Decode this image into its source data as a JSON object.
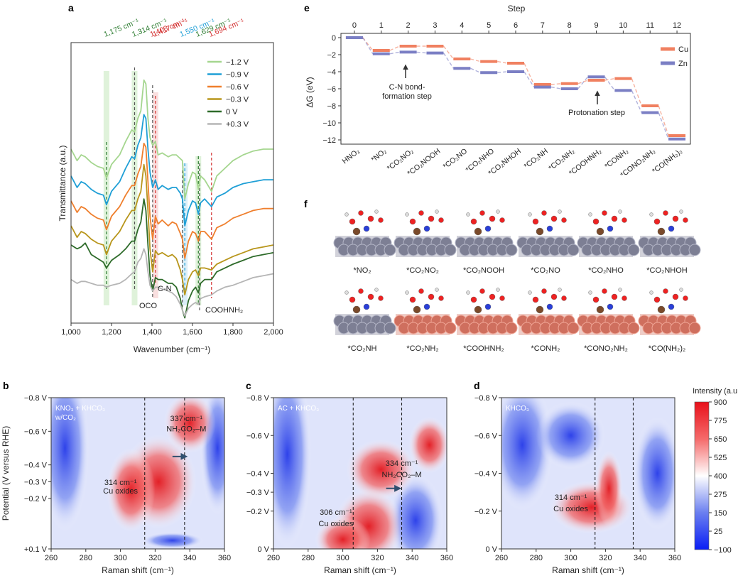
{
  "colors": {
    "green_dark": "#2e7d32",
    "red": "#d32f2f",
    "blue": "#1f9fd6",
    "cu": "#f08060",
    "zn": "#7b7fc4",
    "surface_zn": "#7d7f94",
    "surface_cu": "#d07060"
  },
  "chart_data": [
    {
      "panel": "a",
      "type": "line",
      "xlabel": "Wavenumber (cm⁻¹)",
      "ylabel": "Transmittance (a.u.)",
      "xlim": [
        1000,
        2000
      ],
      "xticks": [
        "1,000",
        "1,200",
        "1,400",
        "1,600",
        "1,800",
        "2,000"
      ],
      "top_labels": [
        {
          "text": "1,175 cm⁻¹",
          "color": "#2e7d32",
          "x": 1175
        },
        {
          "text": "1,314 cm⁻¹",
          "color": "#2e7d32",
          "x": 1314
        },
        {
          "text": "1,403 cm⁻¹",
          "color": "#d32f2f",
          "x": 1403
        },
        {
          "text": "1,417 cm⁻¹",
          "color": "#d32f2f",
          "x": 1417
        },
        {
          "text": "1,550 cm⁻¹",
          "color": "#1f9fd6",
          "x": 1550
        },
        {
          "text": "1,629 cm⁻¹",
          "color": "#2e7d32",
          "x": 1629
        },
        {
          "text": "1,694 cm⁻¹",
          "color": "#d32f2f",
          "x": 1694
        }
      ],
      "dashed_lines": [
        {
          "x": 1175,
          "color": "#2e7d32"
        },
        {
          "x": 1314,
          "color": "#555555"
        },
        {
          "x": 1403,
          "color": "#555555"
        },
        {
          "x": 1417,
          "color": "#d32f2f"
        },
        {
          "x": 1550,
          "color": "#555555"
        },
        {
          "x": 1562,
          "color": "#1f9fd6"
        },
        {
          "x": 1629,
          "color": "#2e7d32"
        },
        {
          "x": 1635,
          "color": "#555555"
        },
        {
          "x": 1694,
          "color": "#d32f2f"
        }
      ],
      "annotations": [
        {
          "text": "OCO",
          "x": 1340
        },
        {
          "text": "C-N",
          "x": 1420
        },
        {
          "text": "COOHNH₂",
          "x": 1720
        }
      ],
      "series": [
        {
          "name": "−1.2 V",
          "color": "#a5d68f",
          "offset": 5.0,
          "x": [
            1000,
            1030,
            1050,
            1070,
            1100,
            1130,
            1160,
            1175,
            1200,
            1240,
            1270,
            1300,
            1314,
            1330,
            1345,
            1360,
            1370,
            1380,
            1390,
            1403,
            1417,
            1430,
            1450,
            1480,
            1500,
            1520,
            1540,
            1550,
            1562,
            1580,
            1600,
            1615,
            1629,
            1640,
            1660,
            1694,
            1720,
            1760,
            1800,
            1850,
            1900,
            1950,
            2000
          ],
          "y": [
            0,
            -0.6,
            -0.3,
            -0.4,
            -0.7,
            -0.9,
            -1.0,
            -1.5,
            -0.8,
            -0.3,
            0.4,
            1.0,
            0.9,
            1.6,
            2.0,
            3.6,
            3.4,
            1.6,
            0.6,
            0.2,
            0.4,
            -0.3,
            -0.2,
            -0.4,
            -0.3,
            -0.3,
            -0.5,
            -0.6,
            -2.6,
            -1.8,
            -1.2,
            -1.3,
            -2.1,
            -1.4,
            -1.6,
            -2.2,
            -1.4,
            -1.0,
            -0.6,
            -0.3,
            -0.1,
            0.0,
            0.0
          ]
        },
        {
          "name": "−0.9 V",
          "color": "#1f9fd6",
          "offset": 3.6,
          "x": [
            1000,
            1030,
            1050,
            1070,
            1100,
            1130,
            1160,
            1175,
            1200,
            1240,
            1270,
            1300,
            1314,
            1330,
            1345,
            1360,
            1370,
            1380,
            1390,
            1403,
            1417,
            1430,
            1450,
            1480,
            1500,
            1520,
            1540,
            1550,
            1562,
            1580,
            1600,
            1615,
            1629,
            1640,
            1660,
            1694,
            1720,
            1760,
            1800,
            1850,
            1900,
            1950,
            2000
          ],
          "y": [
            0,
            -0.6,
            -0.3,
            -0.4,
            -0.7,
            -0.9,
            -1.0,
            -1.5,
            -0.8,
            -0.3,
            0.4,
            1.0,
            0.9,
            1.6,
            2.0,
            3.2,
            3.0,
            1.4,
            0.2,
            -0.6,
            -0.2,
            -0.7,
            -0.5,
            -0.7,
            -0.6,
            -0.6,
            -0.9,
            -1.2,
            -2.6,
            -1.8,
            -1.3,
            -1.4,
            -2.0,
            -1.4,
            -1.2,
            -1.6,
            -1.1,
            -0.9,
            -0.6,
            -0.4,
            -0.3,
            -0.2,
            -0.2
          ]
        },
        {
          "name": "−0.6 V",
          "color": "#ef7f2d",
          "offset": 2.3,
          "x": [
            1000,
            1030,
            1050,
            1070,
            1100,
            1130,
            1160,
            1175,
            1200,
            1240,
            1270,
            1300,
            1314,
            1330,
            1345,
            1360,
            1370,
            1380,
            1390,
            1403,
            1417,
            1430,
            1450,
            1480,
            1500,
            1520,
            1540,
            1550,
            1562,
            1580,
            1600,
            1615,
            1629,
            1640,
            1660,
            1694,
            1720,
            1760,
            1800,
            1850,
            1900,
            1950,
            2000
          ],
          "y": [
            0,
            -0.6,
            -0.3,
            -0.4,
            -0.7,
            -0.9,
            -1.0,
            -1.5,
            -0.8,
            -0.3,
            0.3,
            0.8,
            0.8,
            1.4,
            1.8,
            3.0,
            2.8,
            1.0,
            -0.8,
            -2.0,
            -0.8,
            -1.2,
            -1.0,
            -1.3,
            -1.1,
            -1.2,
            -1.7,
            -2.0,
            -3.0,
            -2.1,
            -1.6,
            -1.7,
            -2.1,
            -1.6,
            -1.6,
            -2.0,
            -1.4,
            -1.2,
            -0.9,
            -0.7,
            -0.5,
            -0.4,
            -0.4
          ]
        },
        {
          "name": "−0.3 V",
          "color": "#b8961c",
          "offset": 1.0,
          "x": [
            1000,
            1030,
            1050,
            1070,
            1100,
            1130,
            1160,
            1175,
            1200,
            1240,
            1270,
            1300,
            1314,
            1330,
            1345,
            1360,
            1370,
            1380,
            1390,
            1403,
            1417,
            1430,
            1450,
            1480,
            1500,
            1520,
            1540,
            1550,
            1562,
            1580,
            1600,
            1615,
            1629,
            1640,
            1660,
            1694,
            1720,
            1760,
            1800,
            1850,
            1900,
            1950,
            2000
          ],
          "y": [
            0,
            -0.6,
            -0.3,
            -0.4,
            -0.7,
            -0.9,
            -1.0,
            -1.5,
            -0.8,
            -0.3,
            0.3,
            0.8,
            0.8,
            1.4,
            1.8,
            3.2,
            2.6,
            0.8,
            -1.2,
            -2.4,
            -1.3,
            -1.5,
            -1.4,
            -1.6,
            -1.5,
            -1.7,
            -2.3,
            -2.8,
            -3.6,
            -2.8,
            -2.4,
            -2.3,
            -2.6,
            -2.2,
            -2.2,
            -2.3,
            -2.0,
            -1.8,
            -1.6,
            -1.4,
            -1.2,
            -1.1,
            -1.0
          ]
        },
        {
          "name": "0 V",
          "color": "#2e6b2a",
          "offset": 0.0,
          "x": [
            1000,
            1030,
            1050,
            1070,
            1100,
            1130,
            1160,
            1175,
            1200,
            1240,
            1270,
            1300,
            1314,
            1330,
            1345,
            1360,
            1370,
            1380,
            1390,
            1403,
            1417,
            1430,
            1450,
            1480,
            1500,
            1520,
            1540,
            1550,
            1562,
            1580,
            1600,
            1615,
            1629,
            1640,
            1660,
            1694,
            1720,
            1760,
            1800,
            1850,
            1900,
            1950,
            2000
          ],
          "y": [
            0,
            -0.2,
            -0.1,
            0.1,
            -0.5,
            -0.7,
            -0.9,
            -1.2,
            -0.8,
            -0.5,
            -0.2,
            0.2,
            0.2,
            0.8,
            1.2,
            2.4,
            1.8,
            0.0,
            -1.6,
            -2.4,
            -1.7,
            -1.8,
            -1.8,
            -2.0,
            -2.0,
            -2.2,
            -2.8,
            -3.4,
            -3.8,
            -2.9,
            -2.4,
            -2.2,
            -2.5,
            -2.0,
            -1.8,
            -1.8,
            -1.4,
            -1.2,
            -1.0,
            -0.8,
            -0.6,
            -0.5,
            -0.4
          ]
        },
        {
          "name": "+0.3 V",
          "color": "#b5b5b5",
          "offset": -1.8,
          "x": [
            1000,
            1030,
            1050,
            1070,
            1100,
            1130,
            1160,
            1175,
            1200,
            1240,
            1270,
            1300,
            1314,
            1330,
            1345,
            1360,
            1370,
            1380,
            1390,
            1403,
            1417,
            1430,
            1450,
            1480,
            1500,
            1520,
            1540,
            1550,
            1562,
            1580,
            1600,
            1615,
            1629,
            1640,
            1660,
            1694,
            1720,
            1760,
            1800,
            1850,
            1900,
            1950,
            2000
          ],
          "y": [
            0,
            -0.2,
            -0.1,
            -0.1,
            -0.2,
            -0.3,
            -0.3,
            -0.4,
            -0.3,
            -0.2,
            0.0,
            0.3,
            0.4,
            0.9,
            1.1,
            1.6,
            1.3,
            0.4,
            -0.3,
            -0.6,
            -0.4,
            -0.4,
            -0.5,
            -0.6,
            -0.7,
            -0.9,
            -1.3,
            -1.6,
            -1.9,
            -1.5,
            -1.3,
            -1.2,
            -1.3,
            -1.0,
            -0.9,
            -0.8,
            -0.6,
            -0.4,
            -0.3,
            -0.1,
            0.1,
            0.2,
            0.3
          ]
        }
      ]
    },
    {
      "panel": "e",
      "type": "line",
      "title": "Step",
      "ylabel": "ΔG (eV)",
      "xlim": [
        -0.5,
        12.5
      ],
      "ylim": [
        -12.5,
        0.5
      ],
      "xticks": [
        "0",
        "1",
        "2",
        "3",
        "4",
        "5",
        "6",
        "7",
        "8",
        "9",
        "10",
        "11",
        "12"
      ],
      "yticks": [
        "0",
        "−2",
        "−4",
        "−6",
        "−8",
        "−10",
        "−12"
      ],
      "categories": [
        "HNO₃",
        "*NO₂",
        "*CO₂NO₂",
        "*CO₂NOOH",
        "*CO₂NO",
        "*CO₂NHO",
        "*CO₂NHOH",
        "*CO₂NH",
        "*CO₂NH₂",
        "*COOHNH₂",
        "*CONH₂",
        "*CONO₂NH₂",
        "*CO(NH₂)₂"
      ],
      "series": [
        {
          "name": "Cu",
          "color": "#f08060",
          "values": [
            0,
            -1.5,
            -1.0,
            -1.0,
            -2.5,
            -2.8,
            -3.0,
            -5.5,
            -5.4,
            -5.0,
            -4.8,
            -8.0,
            -11.5
          ]
        },
        {
          "name": "Zn",
          "color": "#7b7fc4",
          "values": [
            0,
            -1.9,
            -1.7,
            -1.8,
            -3.6,
            -4.1,
            -4.0,
            -5.8,
            -6.0,
            -4.6,
            -6.2,
            -8.8,
            -11.9
          ]
        }
      ],
      "annotations": [
        {
          "text": "C-N bond-",
          "step": 2
        },
        {
          "text": "formation step",
          "step": 2
        },
        {
          "text": "Protonation step",
          "step": 9
        }
      ]
    },
    {
      "panel": "b",
      "type": "heatmap",
      "xlabel": "Raman shift (cm⁻¹)",
      "ylabel": "Potential (V versus RHE)",
      "xlim": [
        260,
        360
      ],
      "yticks": [
        "−0.8 V",
        "−0.6 V",
        "−0.4 V",
        "−0.2 V",
        "+0.1 V"
      ],
      "yticks_mid": [
        "−0.3 V"
      ],
      "xticks": [
        "260",
        "280",
        "300",
        "320",
        "340",
        "360"
      ],
      "dashed_x": [
        314,
        337
      ],
      "inset": [
        "KNO₃ + KHCO₃",
        "w/CO₂"
      ],
      "labels": [
        "337 cm⁻¹",
        "NH₂CO₂–M",
        "314 cm⁻¹",
        "Cu oxides"
      ]
    },
    {
      "panel": "c",
      "type": "heatmap",
      "xlabel": "Raman shift (cm⁻¹)",
      "xlim": [
        260,
        360
      ],
      "yticks": [
        "−0.8 V",
        "−0.6 V",
        "−0.4 V",
        "−0.3 V",
        "−0.2 V",
        "0 V"
      ],
      "xticks": [
        "260",
        "280",
        "300",
        "320",
        "340",
        "360"
      ],
      "dashed_x": [
        306,
        334
      ],
      "inset": [
        "AC + KHCO₃"
      ],
      "labels": [
        "334 cm⁻¹",
        "NH₂CO₂–M",
        "306 cm⁻¹",
        "Cu oxides"
      ]
    },
    {
      "panel": "d",
      "type": "heatmap",
      "xlabel": "Raman shift (cm⁻¹)",
      "xlim": [
        260,
        360
      ],
      "yticks": [
        "−0.8 V",
        "−0.6 V",
        "−0.4 V",
        "−0.2 V",
        "0 V"
      ],
      "xticks": [
        "260",
        "280",
        "300",
        "320",
        "340",
        "360"
      ],
      "dashed_x": [
        314,
        336
      ],
      "inset": [
        "KHCO₃"
      ],
      "labels": [
        "314 cm⁻¹",
        "Cu oxides"
      ],
      "colorbar": {
        "title": "Intensity (a.u.)",
        "ticks": [
          "900",
          "775",
          "650",
          "525",
          "400",
          "275",
          "150",
          "25",
          "−100"
        ],
        "range": [
          -100,
          900
        ]
      }
    }
  ],
  "panel_f": {
    "row1": [
      "*NO₂",
      "*CO₂NO₂",
      "*CO₂NOOH",
      "*CO₂NO",
      "*CO₂NHO",
      "*CO₂NHOH"
    ],
    "row2": [
      "*CO₂NH",
      "*CO₂NH₂",
      "*COOHNH₂",
      "*CONH₂",
      "*CONO₂NH₂",
      "*CO(NH₂)₂"
    ]
  },
  "panel_labels": [
    "a",
    "b",
    "c",
    "d",
    "e",
    "f"
  ]
}
